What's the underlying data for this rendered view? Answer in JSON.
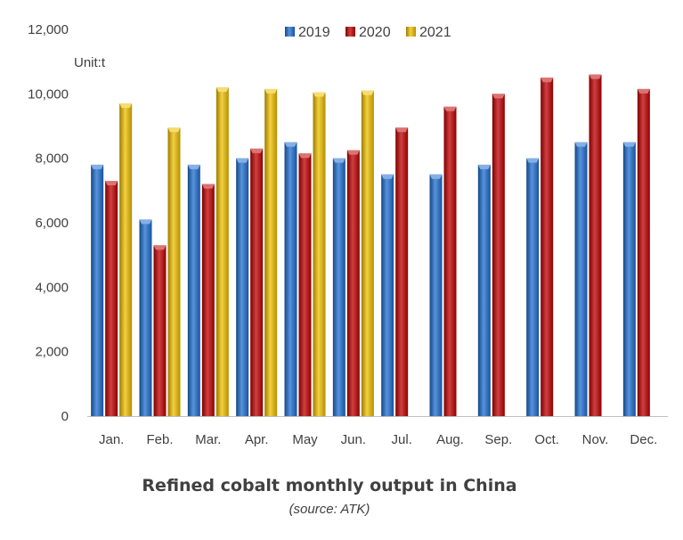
{
  "chart_data": {
    "type": "bar",
    "title": "Refined cobalt monthly output in China",
    "subtitle": "(source: ATK)",
    "unit_label": "Unit:t",
    "categories": [
      "Jan.",
      "Feb.",
      "Mar.",
      "Apr.",
      "May",
      "Jun.",
      "Jul.",
      "Aug.",
      "Sep.",
      "Oct.",
      "Nov.",
      "Dec."
    ],
    "series": [
      {
        "name": "2019",
        "color": "#1f6fd1",
        "values": [
          7800,
          6100,
          7800,
          8000,
          8500,
          8000,
          7500,
          7500,
          7800,
          8000,
          8500,
          8500
        ]
      },
      {
        "name": "2020",
        "color": "#c00000",
        "values": [
          7300,
          5300,
          7200,
          8300,
          8150,
          8250,
          8950,
          9600,
          10000,
          10500,
          10600,
          10150
        ]
      },
      {
        "name": "2021",
        "color": "#f0c000",
        "values": [
          9700,
          8950,
          10200,
          10150,
          10050,
          10100,
          null,
          null,
          null,
          null,
          null,
          null
        ]
      }
    ],
    "ylim": [
      0,
      12000
    ],
    "yticks": [
      0,
      2000,
      4000,
      6000,
      8000,
      10000,
      12000
    ],
    "ytick_labels": [
      "0",
      "2,000",
      "4,000",
      "6,000",
      "8,000",
      "10,000",
      "12,000"
    ],
    "legend_position": "top-center",
    "grid": false
  }
}
